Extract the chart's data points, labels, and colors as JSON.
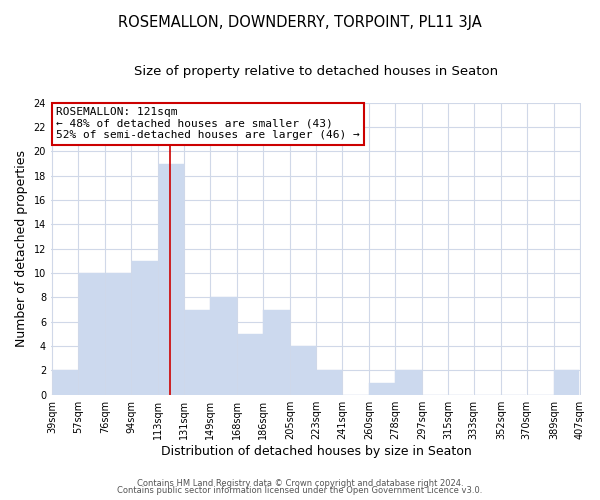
{
  "title": "ROSEMALLON, DOWNDERRY, TORPOINT, PL11 3JA",
  "subtitle": "Size of property relative to detached houses in Seaton",
  "xlabel": "Distribution of detached houses by size in Seaton",
  "ylabel": "Number of detached properties",
  "bar_color": "#ccd9ee",
  "vline_x": 121,
  "vline_color": "#cc0000",
  "annotation_title": "ROSEMALLON: 121sqm",
  "annotation_line1": "← 48% of detached houses are smaller (43)",
  "annotation_line2": "52% of semi-detached houses are larger (46) →",
  "annotation_box_facecolor": "#ffffff",
  "annotation_box_edgecolor": "#cc0000",
  "bins": [
    39,
    57,
    76,
    94,
    113,
    131,
    149,
    168,
    186,
    205,
    223,
    241,
    260,
    278,
    297,
    315,
    333,
    352,
    370,
    389,
    407
  ],
  "counts": [
    2,
    10,
    10,
    11,
    19,
    7,
    8,
    5,
    7,
    4,
    2,
    0,
    1,
    2,
    0,
    0,
    0,
    0,
    0,
    2
  ],
  "ylim": [
    0,
    24
  ],
  "yticks": [
    0,
    2,
    4,
    6,
    8,
    10,
    12,
    14,
    16,
    18,
    20,
    22,
    24
  ],
  "footer1": "Contains HM Land Registry data © Crown copyright and database right 2024.",
  "footer2": "Contains public sector information licensed under the Open Government Licence v3.0.",
  "plot_bg_color": "#ffffff",
  "fig_bg_color": "#ffffff",
  "grid_color": "#d0d8e8",
  "title_fontsize": 10.5,
  "subtitle_fontsize": 9.5,
  "axis_label_fontsize": 9,
  "tick_fontsize": 7,
  "footer_fontsize": 6,
  "ann_fontsize": 8
}
